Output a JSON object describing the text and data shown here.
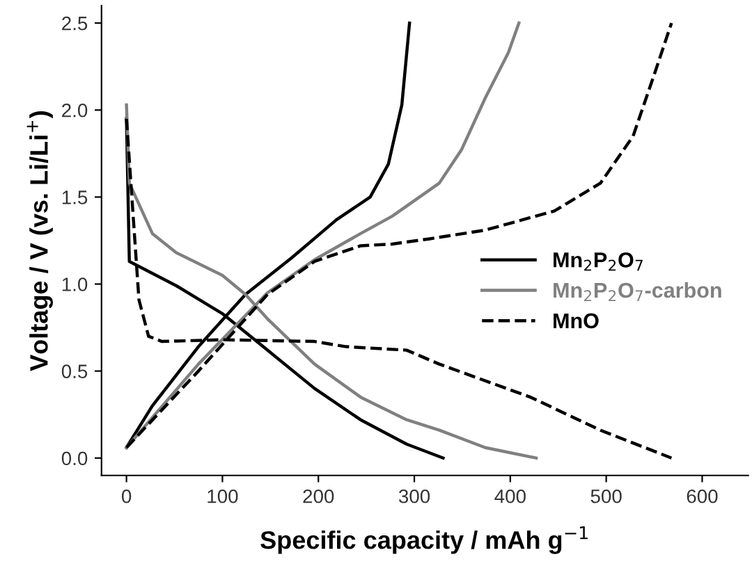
{
  "chart_data": {
    "type": "line",
    "xlabel": "Specific capacity / mAh g$^{−1}$",
    "ylabel": "Voltage / V (vs. Li/Li$^{+}$)",
    "xlim": [
      -26,
      648
    ],
    "ylim": [
      -0.1,
      2.6
    ],
    "xticks": [
      0,
      100,
      200,
      300,
      400,
      500,
      600
    ],
    "yticks": [
      {
        "value": 0,
        "label": "0.0"
      },
      0.5,
      {
        "value": 1,
        "label": "1.0"
      },
      1.5,
      {
        "value": 2,
        "label": "2.0"
      },
      2.5
    ],
    "grid": false,
    "legend": "right",
    "marker": "none",
    "series": [
      {
        "name": "Mn$_{2}$P$_{2}$O$_{7}$",
        "color": "#000000",
        "line_style": "solid",
        "x": [
          0,
          3,
          52,
          100,
          147,
          196,
          244,
          292,
          330
        ],
        "values": [
          1.95,
          1.13,
          0.99,
          0.83,
          0.62,
          0.4,
          0.22,
          0.08,
          0
        ]
      },
      {
        "color": "#000000",
        "line_style": "solid",
        "x": [
          0,
          27,
          75,
          124,
          172,
          219,
          254,
          273,
          287,
          295
        ],
        "values": [
          0.06,
          0.3,
          0.64,
          0.94,
          1.15,
          1.37,
          1.5,
          1.69,
          2.03,
          2.5
        ]
      },
      {
        "name": "Mn$_{2}$P$_{2}$O$_{7}$-carbon",
        "color": "#808080",
        "line_style": "solid",
        "x": [
          0,
          3,
          27,
          52,
          100,
          124,
          147,
          196,
          244,
          292,
          326,
          374,
          427
        ],
        "values": [
          2.03,
          1.58,
          1.29,
          1.18,
          1.05,
          0.94,
          0.8,
          0.54,
          0.35,
          0.22,
          0.16,
          0.06,
          0
        ]
      },
      {
        "color": "#808080",
        "line_style": "solid",
        "x": [
          0,
          75,
          147,
          196,
          244,
          277,
          326,
          349,
          374,
          398,
          409
        ],
        "values": [
          0.06,
          0.54,
          0.95,
          1.14,
          1.29,
          1.39,
          1.58,
          1.77,
          2.07,
          2.33,
          2.5
        ]
      },
      {
        "name": "MnO",
        "color": "#000000",
        "line_style": "dashed",
        "x": [
          0,
          13,
          23,
          37,
          100,
          196,
          229,
          292,
          326,
          421,
          494,
          568
        ],
        "values": [
          1.95,
          0.91,
          0.7,
          0.67,
          0.68,
          0.67,
          0.64,
          0.62,
          0.54,
          0.35,
          0.16,
          0
        ]
      },
      {
        "color": "#000000",
        "line_style": "dashed",
        "x": [
          0,
          75,
          147,
          196,
          244,
          277,
          316,
          374,
          446,
          494,
          528,
          551,
          568
        ],
        "values": [
          0.06,
          0.5,
          0.94,
          1.13,
          1.22,
          1.23,
          1.26,
          1.31,
          1.42,
          1.58,
          1.85,
          2.22,
          2.5
        ]
      }
    ]
  }
}
